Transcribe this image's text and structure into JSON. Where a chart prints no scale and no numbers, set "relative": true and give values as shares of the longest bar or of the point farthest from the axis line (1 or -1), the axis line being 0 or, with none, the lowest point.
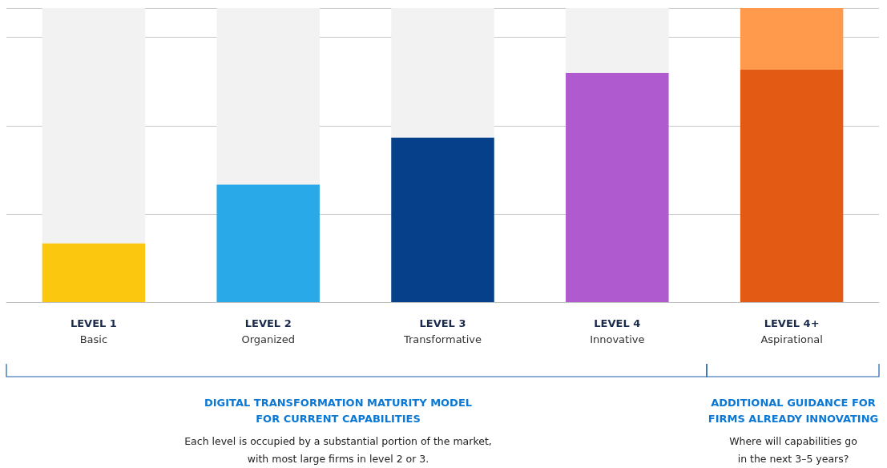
{
  "chart_data": {
    "type": "bar",
    "relative": true,
    "stacked": true,
    "grid": "y",
    "categories": [
      "LEVEL 1\nBasic",
      "LEVEL 2\nOrganized",
      "LEVEL 3\nTransformative",
      "LEVEL 4\nInnovative",
      "LEVEL 4+\nAspirational"
    ],
    "series": [
      {
        "colors": [
          "#fcc80f",
          "#2aa9e8",
          "#063f8a",
          "#b05ad0",
          "#e35a14"
        ],
        "values": [
          0.2,
          0.4,
          0.56,
          0.78,
          0.79
        ]
      },
      {
        "colors": [
          "#f2f2f2",
          "#f2f2f2",
          "#f2f2f2",
          "#f2f2f2",
          "#ff9a4d"
        ],
        "values": [
          0.8,
          0.6,
          0.44,
          0.22,
          0.21
        ]
      }
    ],
    "annotations": [
      "DIGITAL TRANSFORMATION MATURITY MODEL\nFOR CURRENT CAPABILITIES",
      "Each level is occupied by a substantial portion of the market,\nwith most large firms in level 2 or 3.",
      "ADDITIONAL GUIDANCE FOR\nFIRMS ALREADY INNOVATING",
      "Where will capabilities go\nin the next 3–5 years?"
    ]
  }
}
